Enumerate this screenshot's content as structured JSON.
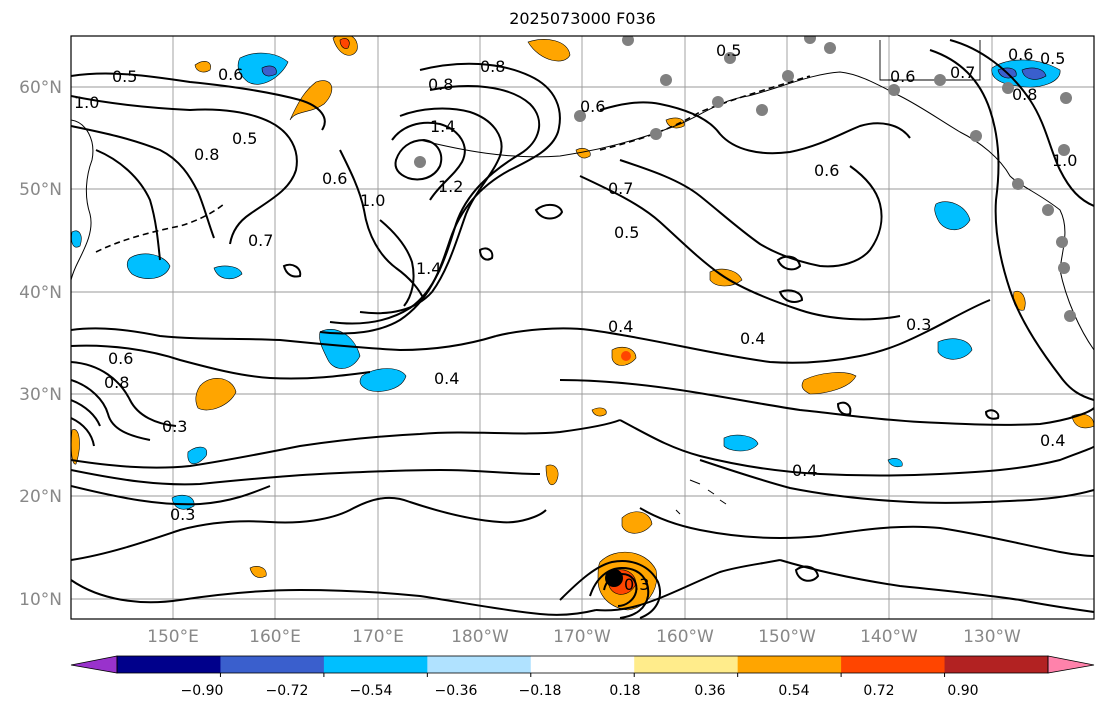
{
  "title": "2025073000 F036",
  "map": {
    "lat_labels": [
      "60°N",
      "50°N",
      "40°N",
      "30°N",
      "20°N",
      "10°N"
    ],
    "lon_labels": [
      "150°E",
      "160°E",
      "170°E",
      "180°W",
      "170°W",
      "160°W",
      "150°W",
      "140°W",
      "130°W"
    ],
    "contour_labels": [
      "0.5",
      "0.6",
      "0.8",
      "1.4",
      "0.8",
      "0.5",
      "0.6",
      "0.7",
      "0.6",
      "0.5",
      "1.0",
      "0.8",
      "0.5",
      "0.6",
      "0.7",
      "1.0",
      "1.2",
      "1.4",
      "0.7",
      "0.5",
      "0.6",
      "0.4",
      "0.4",
      "0.3",
      "0.4",
      "0.4",
      "0.3",
      "0.8",
      "0.6",
      "0.4",
      "0.3",
      "1.0",
      "0.8",
      "0.3",
      "0.6"
    ],
    "grid": true
  },
  "colorbar": {
    "colors": [
      "#9932cc",
      "#00008b",
      "#3a5fcd",
      "#00bfff",
      "#b0e2ff",
      "#ffffff",
      "#ffec8b",
      "#ffa500",
      "#ff4500",
      "#b22222",
      "#ff82ab"
    ],
    "tick_labels": [
      "−0.90",
      "−0.72",
      "−0.54",
      "−0.36",
      "−0.18",
      "0.18",
      "0.36",
      "0.54",
      "0.72",
      "0.90"
    ],
    "extend": "both"
  }
}
